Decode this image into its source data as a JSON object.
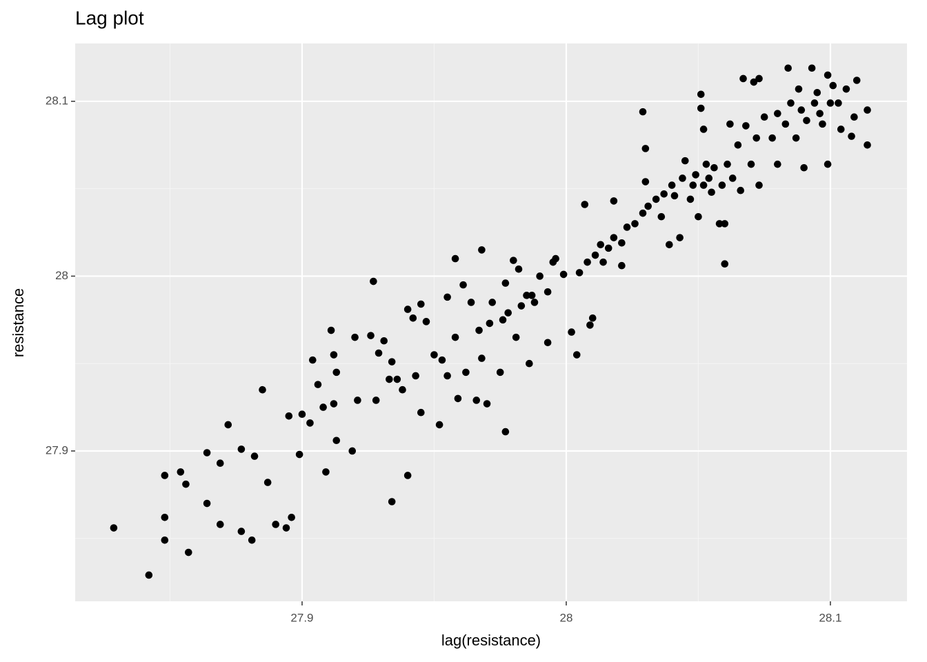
{
  "chart_data": {
    "type": "scatter",
    "title": "Lag plot",
    "x_label": "lag(resistance)",
    "y_label": "resistance",
    "color": "#000000",
    "grid": true,
    "xlim": [
      27.8141,
      28.129
    ],
    "ylim": [
      27.814,
      28.1331
    ],
    "xticks": [
      27.9,
      28.0,
      28.1
    ],
    "yticks": [
      27.9,
      28.0,
      28.1
    ],
    "x": [
      27.8287,
      27.842,
      27.848,
      27.848,
      27.848,
      27.857,
      27.854,
      27.856,
      27.864,
      27.872,
      27.869,
      27.864,
      27.869,
      27.877,
      27.881,
      27.885,
      27.877,
      27.882,
      27.887,
      27.89,
      27.894,
      27.896,
      27.895,
      27.9,
      27.904,
      27.906,
      27.899,
      27.903,
      27.909,
      27.908,
      27.911,
      27.912,
      27.913,
      27.912,
      27.913,
      27.919,
      27.92,
      27.921,
      27.927,
      27.926,
      27.929,
      27.928,
      27.931,
      27.934,
      27.934,
      27.933,
      27.936,
      27.938,
      27.94,
      27.94,
      27.942,
      27.943,
      27.945,
      27.947,
      27.945,
      27.95,
      27.952,
      27.955,
      27.953,
      27.955,
      27.958,
      27.958,
      27.959,
      27.961,
      27.962,
      27.964,
      27.966,
      27.968,
      27.967,
      27.968,
      27.97,
      27.971,
      27.972,
      27.975,
      27.977,
      27.976,
      27.977,
      27.978,
      27.98,
      27.981,
      27.982,
      27.983,
      27.985,
      27.986,
      27.987,
      27.988,
      27.99,
      27.993,
      27.993,
      27.995,
      27.996,
      27.999,
      28.002,
      28.004,
      28.005,
      28.007,
      28.008,
      28.009,
      28.01,
      28.011,
      28.013,
      28.014,
      28.016,
      28.018,
      28.018,
      28.021,
      28.021,
      28.023,
      28.026,
      28.029,
      28.029,
      28.03,
      28.03,
      28.031,
      28.034,
      28.036,
      28.037,
      28.039,
      28.04,
      28.041,
      28.043,
      28.044,
      28.045,
      28.047,
      28.048,
      28.049,
      28.05,
      28.051,
      28.051,
      28.052,
      28.052,
      28.053,
      28.054,
      28.055,
      28.056,
      28.058,
      28.059,
      28.06,
      28.06,
      28.061,
      28.062,
      28.063,
      28.065,
      28.066,
      28.067,
      28.068,
      28.07,
      28.071,
      28.072,
      28.073,
      28.073,
      28.075,
      28.078,
      28.08,
      28.08,
      28.083,
      28.084,
      28.085,
      28.087,
      28.088,
      28.089,
      28.09,
      28.091,
      28.093,
      28.094,
      28.095,
      28.096,
      28.097,
      28.099,
      28.099,
      28.1,
      28.101,
      28.103,
      28.104,
      28.106,
      28.108,
      28.11,
      28.109,
      28.114,
      28.114
    ],
    "values": [
      27.856,
      27.829,
      27.886,
      27.862,
      27.849,
      27.842,
      27.888,
      27.881,
      27.899,
      27.915,
      27.893,
      27.87,
      27.858,
      27.854,
      27.849,
      27.935,
      27.901,
      27.897,
      27.882,
      27.858,
      27.856,
      27.862,
      27.92,
      27.921,
      27.952,
      27.938,
      27.898,
      27.916,
      27.888,
      27.925,
      27.969,
      27.955,
      27.945,
      27.927,
      27.906,
      27.9,
      27.965,
      27.929,
      27.997,
      27.966,
      27.956,
      27.929,
      27.963,
      27.871,
      27.951,
      27.941,
      27.941,
      27.935,
      27.886,
      27.981,
      27.976,
      27.943,
      27.984,
      27.974,
      27.922,
      27.955,
      27.915,
      27.988,
      27.952,
      27.943,
      28.01,
      27.965,
      27.93,
      27.995,
      27.945,
      27.985,
      27.929,
      28.015,
      27.969,
      27.953,
      27.927,
      27.973,
      27.985,
      27.945,
      27.911,
      27.975,
      27.996,
      27.979,
      28.009,
      27.965,
      28.004,
      27.983,
      27.989,
      27.95,
      27.989,
      27.985,
      28.0,
      27.962,
      27.991,
      28.008,
      28.01,
      28.001,
      27.968,
      27.955,
      28.002,
      28.041,
      28.008,
      27.972,
      27.976,
      28.012,
      28.018,
      28.008,
      28.016,
      28.043,
      28.022,
      28.019,
      28.006,
      28.028,
      28.03,
      28.036,
      28.094,
      28.073,
      28.054,
      28.04,
      28.044,
      28.034,
      28.047,
      28.018,
      28.052,
      28.046,
      28.022,
      28.056,
      28.066,
      28.044,
      28.052,
      28.058,
      28.034,
      28.104,
      28.096,
      28.052,
      28.084,
      28.064,
      28.056,
      28.048,
      28.062,
      28.03,
      28.052,
      28.007,
      28.03,
      28.064,
      28.087,
      28.056,
      28.075,
      28.049,
      28.113,
      28.086,
      28.064,
      28.111,
      28.079,
      28.052,
      28.113,
      28.091,
      28.079,
      28.064,
      28.093,
      28.087,
      28.119,
      28.099,
      28.079,
      28.107,
      28.095,
      28.062,
      28.089,
      28.119,
      28.099,
      28.105,
      28.093,
      28.087,
      28.115,
      28.064,
      28.099,
      28.109,
      28.099,
      28.084,
      28.107,
      28.08,
      28.112,
      28.091,
      28.095,
      28.075
    ]
  }
}
